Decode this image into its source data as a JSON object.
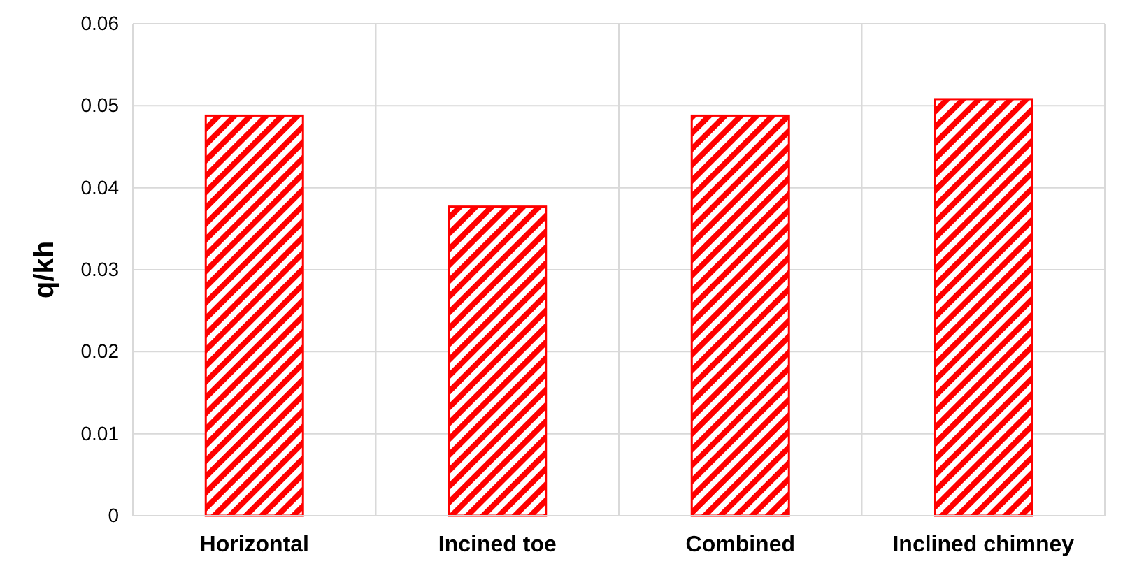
{
  "chart_data": {
    "type": "bar",
    "ylabel": "q/kh",
    "categories": [
      "Horizontal",
      "Incined toe",
      "Combined",
      "Inclined chimney"
    ],
    "values": [
      0.0488,
      0.0377,
      0.0488,
      0.0508
    ],
    "color": "#ff0000",
    "ylim": [
      0,
      0.06
    ],
    "yticks": [
      {
        "value": 0,
        "label": "0"
      },
      0.01,
      0.02,
      0.03,
      0.04,
      0.05,
      0.06
    ],
    "grid": true
  }
}
